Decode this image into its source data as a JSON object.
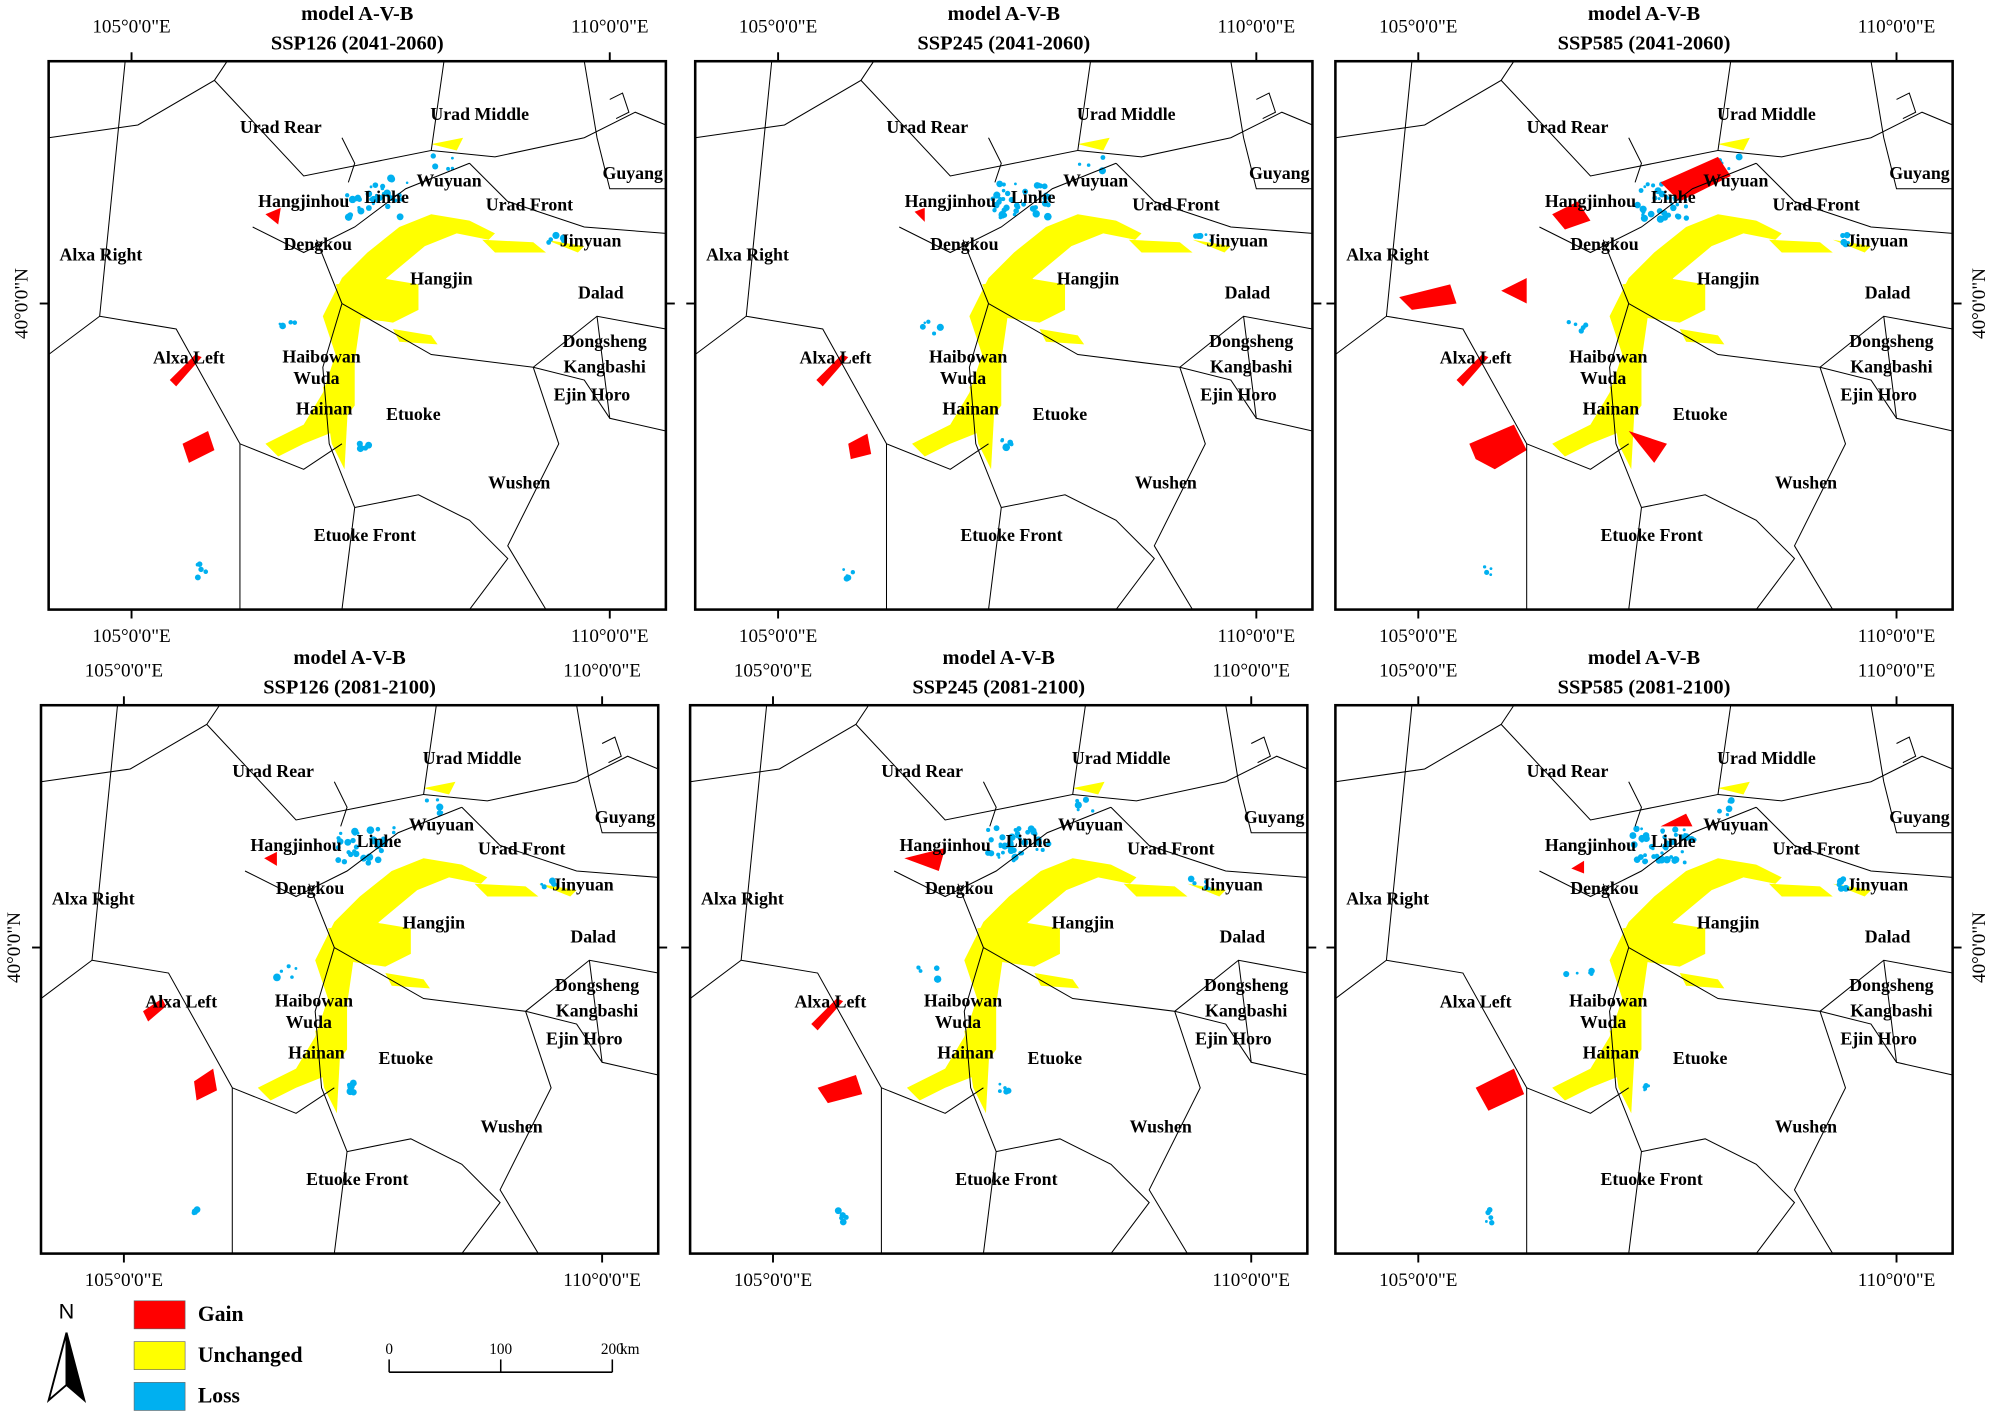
{
  "panels": [
    {
      "title": "model A-V-B",
      "subtitle": "SSP126 (2041-2060)"
    },
    {
      "title": "model A-V-B",
      "subtitle": "SSP245 (2041-2060)"
    },
    {
      "title": "model A-V-B",
      "subtitle": "SSP585 (2041-2060)"
    },
    {
      "title": "model A-V-B",
      "subtitle": "SSP126 (2081-2100)"
    },
    {
      "title": "model A-V-B",
      "subtitle": "SSP245 (2081-2100)"
    },
    {
      "title": "model A-V-B",
      "subtitle": "SSP585 (2081-2100)"
    }
  ],
  "coordinates": {
    "lon_west": "105°0'0\"E",
    "lon_east": "110°0'0\"E",
    "lat": "40°0'0\"N"
  },
  "regions": [
    "Urad Rear",
    "Urad Middle",
    "Guyang",
    "Hangjinhou",
    "Linhe",
    "Wuyuan",
    "Urad Front",
    "Dengkou",
    "Jinyuan",
    "Alxa Right",
    "Hangjin",
    "Dalad",
    "Alxa Left",
    "Haibowan",
    "Dongsheng",
    "Kangbashi",
    "Wuda",
    "Ejin Horo",
    "Hainan",
    "Etuoke",
    "Wushen",
    "Etuoke Front"
  ],
  "legend": [
    {
      "label": "Gain",
      "color": "#ff0000"
    },
    {
      "label": "Unchanged",
      "color": "#ffff00"
    },
    {
      "label": "Loss",
      "color": "#00b0f0"
    }
  ],
  "north": "N",
  "scale_bar": {
    "ticks": [
      0,
      100,
      200
    ],
    "unit": "km"
  }
}
